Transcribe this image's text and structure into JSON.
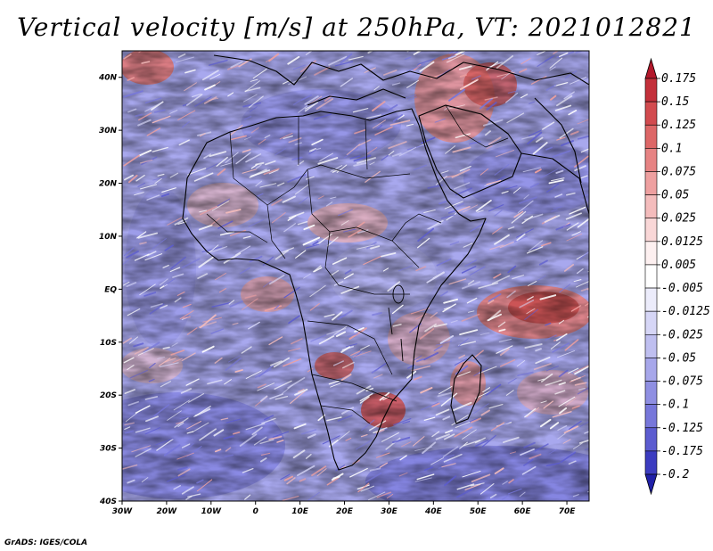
{
  "title": "Vertical velocity [m/s] at 250hPa, VT: 2021012821",
  "footer": "GrADS: IGES/COLA",
  "map": {
    "lat_labels": [
      "40N",
      "30N",
      "20N",
      "10N",
      "EQ",
      "10S",
      "20S",
      "30S",
      "40S"
    ],
    "lon_labels": [
      "30W",
      "20W",
      "10W",
      "0",
      "10E",
      "20E",
      "30E",
      "40E",
      "50E",
      "60E",
      "70E"
    ],
    "lon_range": [
      -30,
      75
    ],
    "lat_range": [
      -40,
      45
    ]
  },
  "colorbar": {
    "labels": [
      "0.175",
      "0.15",
      "0.125",
      "0.1",
      "0.075",
      "0.05",
      "0.025",
      "0.0125",
      "0.005",
      "-0.005",
      "-0.0125",
      "-0.025",
      "-0.05",
      "-0.075",
      "-0.1",
      "-0.125",
      "-0.175",
      "-0.2"
    ],
    "colors": [
      "#b2182b",
      "#c3303a",
      "#d24b4f",
      "#dd6767",
      "#e68383",
      "#eea0a0",
      "#f4bcbc",
      "#f9d7d7",
      "#fdf0f0",
      "#ffffff",
      "#ececfb",
      "#d6d6f6",
      "#bfbff0",
      "#a7a7ea",
      "#8f8fe2",
      "#7777da",
      "#5c5cd0",
      "#3c3cc0",
      "#2020a8"
    ]
  },
  "legend_colors": {
    "positive": "#c0282c",
    "negative": "#3030b8",
    "neutral": "#ffffff",
    "land_border": "#000000"
  }
}
